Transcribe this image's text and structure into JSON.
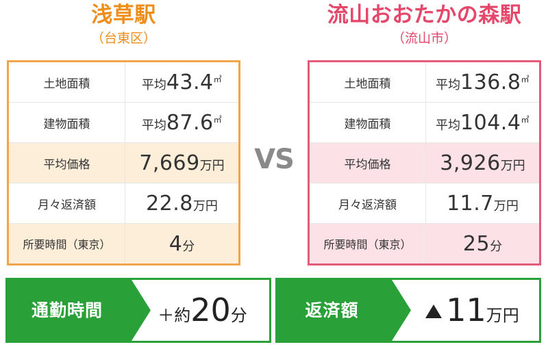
{
  "left": {
    "name": "浅草駅",
    "ward": "（台東区）",
    "rows": [
      {
        "label": "土地面積",
        "pre": "平均",
        "value": "43.4",
        "unit": "㎡"
      },
      {
        "label": "建物面積",
        "pre": "平均",
        "value": "87.6",
        "unit": "㎡"
      },
      {
        "label": "平均価格",
        "pre": "",
        "value": "7,669",
        "unit": "万円"
      },
      {
        "label": "月々返済額",
        "pre": "",
        "value": "22.8",
        "unit": "万円"
      },
      {
        "label": "所要時間（東京）",
        "pre": "",
        "value": "4",
        "unit": "分"
      }
    ],
    "accent": "#ee8e19"
  },
  "right": {
    "name": "流山おおたかの森駅",
    "ward": "（流山市）",
    "rows": [
      {
        "label": "土地面積",
        "pre": "平均",
        "value": "136.8",
        "unit": "㎡"
      },
      {
        "label": "建物面積",
        "pre": "平均",
        "value": "104.4",
        "unit": "㎡"
      },
      {
        "label": "平均価格",
        "pre": "",
        "value": "3,926",
        "unit": "万円"
      },
      {
        "label": "月々返済額",
        "pre": "",
        "value": "11.7",
        "unit": "万円"
      },
      {
        "label": "所要時間（東京）",
        "pre": "",
        "value": "25",
        "unit": "分"
      }
    ],
    "accent": "#e5476a"
  },
  "vs": "VS",
  "summary": {
    "commute": {
      "label": "通勤時間",
      "prefix": "＋約",
      "value": "20",
      "unit": "分"
    },
    "payment": {
      "label": "返済額",
      "icon": "triangle-up-icon",
      "value": "11",
      "unit": "万円"
    },
    "color": "#2aa138"
  }
}
